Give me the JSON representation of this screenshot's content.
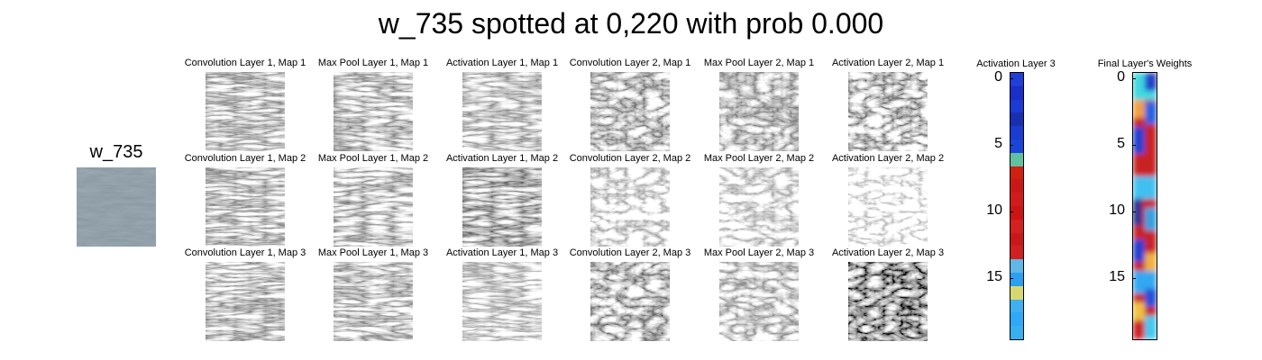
{
  "title": "w_735 spotted at 0,220 with prob 0.000",
  "input": {
    "label": "w_735"
  },
  "feature_maps": {
    "columns": [
      "Layer 1 Conv",
      "Layer 1 Pool",
      "Layer 1 Act",
      "Layer 2 Conv",
      "Layer 2 Pool",
      "Layer 2 Act"
    ],
    "titles": [
      [
        "Convolution Layer 1, Map 1",
        "Max Pool Layer 1, Map 1",
        "Activation Layer 1, Map 1",
        "Convolution Layer 2, Map 1",
        "Max Pool Layer 2, Map 1",
        "Activation Layer 2, Map 1"
      ],
      [
        "Convolution Layer 1, Map 2",
        "Max Pool Layer 1, Map 2",
        "Activation Layer 1, Map 2",
        "Convolution Layer 2, Map 2",
        "Max Pool Layer 2, Map 2",
        "Activation Layer 2, Map 2"
      ],
      [
        "Convolution Layer 1, Map 3",
        "Max Pool Layer 1, Map 3",
        "Activation Layer 1, Map 3",
        "Convolution Layer 2, Map 3",
        "Max Pool Layer 2, Map 3",
        "Activation Layer 2, Map 3"
      ]
    ]
  },
  "activation_layer3": {
    "title": "Activation Layer 3",
    "ticks": [
      "0",
      "5",
      "10",
      "15"
    ],
    "colors": [
      "#1f3fd6",
      "#1a2fc8",
      "#1c3ad4",
      "#1830b0",
      "#1a3cd0",
      "#1b45d8",
      "#60c0a0",
      "#d02010",
      "#c81818",
      "#d01c1c",
      "#cc1414",
      "#d42020",
      "#c81818",
      "#d02020",
      "#60b8e8",
      "#2aa0f0",
      "#d8d870",
      "#40b0f0",
      "#30a8f8",
      "#38b0f0"
    ]
  },
  "final_weights": {
    "title": "Final Layer's Weights",
    "ticks": [
      "0",
      "5",
      "10",
      "15"
    ]
  }
}
